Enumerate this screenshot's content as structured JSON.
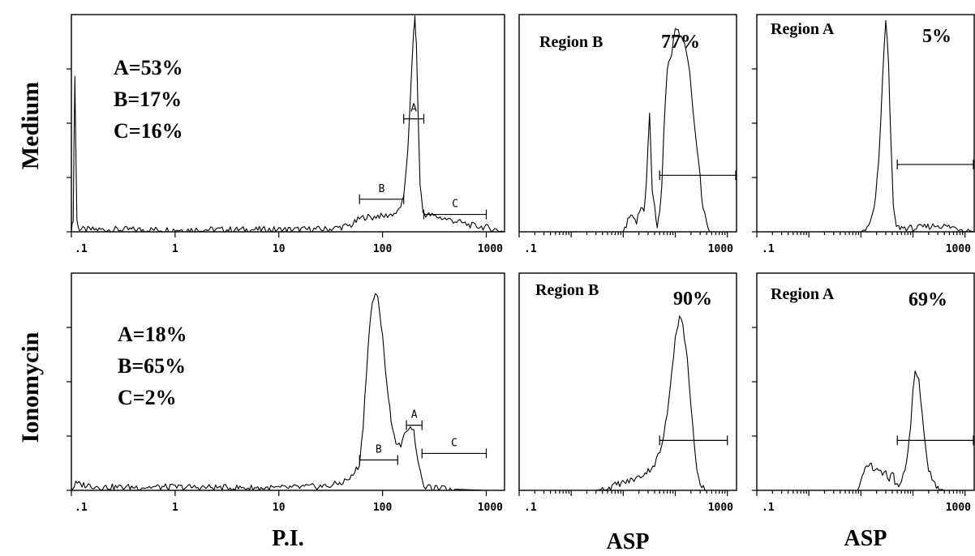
{
  "chart_data": [
    {
      "id": "medium-pi",
      "type": "area",
      "row_label": "Medium",
      "xlabel": "",
      "x_scale": "log",
      "xlim": [
        0.1,
        1500
      ],
      "x_tick_labels": [
        ".1",
        "1",
        "10",
        "100",
        "1000"
      ],
      "stats": [
        "A=53%",
        "B=17%",
        "C=16%"
      ],
      "gates": [
        {
          "label": "A",
          "from": 160,
          "to": 250,
          "level": 0.52
        },
        {
          "label": "B",
          "from": 60,
          "to": 160,
          "level": 0.15
        },
        {
          "label": "C",
          "from": 250,
          "to": 1000,
          "level": 0.08
        }
      ],
      "series": [
        {
          "x": [
            0.1,
            0.104,
            0.108,
            0.113,
            0.12,
            0.2,
            1,
            10,
            30,
            50,
            60,
            70,
            80,
            90,
            100,
            120,
            140,
            160,
            175,
            190,
            200,
            205,
            212,
            220,
            230,
            245,
            260,
            300,
            400,
            500,
            700,
            1000,
            1500
          ],
          "y": [
            0.0,
            0.06,
            0.72,
            0.05,
            0.01,
            0.01,
            0.01,
            0.01,
            0.012,
            0.03,
            0.06,
            0.07,
            0.065,
            0.075,
            0.07,
            0.08,
            0.09,
            0.15,
            0.38,
            0.72,
            0.93,
            0.98,
            0.86,
            0.55,
            0.22,
            0.09,
            0.08,
            0.075,
            0.06,
            0.05,
            0.03,
            0.02,
            0.0
          ]
        }
      ]
    },
    {
      "id": "medium-asp-b",
      "type": "area",
      "row_label": "Medium",
      "x_scale": "log",
      "xlim": [
        0.1,
        1500
      ],
      "x_tick_labels": [
        ".1",
        "1000"
      ],
      "region": {
        "name": "Region B",
        "percent": "77%"
      },
      "gates": [
        {
          "from": 50,
          "to": 1500,
          "level": 0.26
        }
      ],
      "series": [
        {
          "x": [
            0.1,
            10,
            14,
            18,
            22,
            25,
            28,
            32,
            36,
            40,
            45,
            50,
            55,
            60,
            70,
            85,
            100,
            130,
            160,
            190,
            220,
            260,
            300,
            340,
            400,
            460,
            520,
            600,
            700,
            1000
          ],
          "y": [
            0.0,
            0.0,
            0.08,
            0.05,
            0.12,
            0.08,
            0.25,
            0.55,
            0.18,
            0.12,
            0.02,
            0.1,
            0.2,
            0.45,
            0.75,
            0.82,
            0.95,
            0.89,
            0.85,
            0.72,
            0.55,
            0.38,
            0.25,
            0.1,
            0.05,
            0.0,
            0.0,
            0.0,
            0.0,
            0.0
          ]
        }
      ]
    },
    {
      "id": "medium-asp-a",
      "type": "area",
      "row_label": "Medium",
      "x_scale": "log",
      "xlim": [
        0.1,
        1500
      ],
      "x_tick_labels": [
        ".1",
        "1000"
      ],
      "region": {
        "name": "Region A",
        "percent": "5%"
      },
      "gates": [
        {
          "from": 50,
          "to": 1500,
          "level": 0.31
        }
      ],
      "series": [
        {
          "x": [
            0.1,
            10,
            14,
            18,
            22,
            26,
            30,
            34,
            38,
            42,
            46,
            50,
            60,
            100,
            300,
            600,
            1000,
            1500
          ],
          "y": [
            0.0,
            0.0,
            0.02,
            0.1,
            0.32,
            0.7,
            0.98,
            0.78,
            0.38,
            0.12,
            0.04,
            0.02,
            0.02,
            0.015,
            0.03,
            0.02,
            0.01,
            0.0
          ]
        }
      ]
    },
    {
      "id": "ionomycin-pi",
      "type": "area",
      "row_label": "Ionomycin",
      "xlabel": "P.I.",
      "x_scale": "log",
      "xlim": [
        0.1,
        1500
      ],
      "x_tick_labels": [
        ".1",
        "1",
        "10",
        "100",
        "1000"
      ],
      "stats": [
        "A=18%",
        "B=65%",
        "C=2%"
      ],
      "gates": [
        {
          "label": "A",
          "from": 170,
          "to": 240,
          "level": 0.3
        },
        {
          "label": "B",
          "from": 60,
          "to": 140,
          "level": 0.14
        },
        {
          "label": "C",
          "from": 240,
          "to": 1000,
          "level": 0.17
        }
      ],
      "series": [
        {
          "x": [
            0.1,
            0.11,
            0.2,
            1,
            10,
            30,
            40,
            50,
            60,
            65,
            70,
            75,
            80,
            85,
            90,
            100,
            110,
            125,
            140,
            155,
            170,
            185,
            200,
            220,
            240,
            260,
            300,
            500,
            1000,
            1500
          ],
          "y": [
            0.0,
            0.03,
            0.015,
            0.015,
            0.01,
            0.02,
            0.035,
            0.06,
            0.12,
            0.3,
            0.55,
            0.75,
            0.87,
            0.9,
            0.88,
            0.72,
            0.48,
            0.28,
            0.2,
            0.22,
            0.28,
            0.3,
            0.27,
            0.14,
            0.04,
            0.015,
            0.01,
            0.005,
            0.0,
            0.0
          ]
        }
      ]
    },
    {
      "id": "ionomycin-asp-b",
      "type": "area",
      "row_label": "Ionomycin",
      "xlabel": "ASP",
      "x_scale": "log",
      "xlim": [
        0.1,
        1500
      ],
      "x_tick_labels": [
        ".1",
        "1000"
      ],
      "region": {
        "name": "Region B",
        "percent": "90%"
      },
      "gates": [
        {
          "from": 50,
          "to": 1000,
          "level": 0.23
        }
      ],
      "series": [
        {
          "x": [
            0.1,
            3,
            5,
            8,
            12,
            20,
            30,
            40,
            55,
            70,
            85,
            100,
            120,
            140,
            170,
            200,
            230,
            260,
            300,
            400,
            1000
          ],
          "y": [
            0.0,
            0.0,
            0.01,
            0.03,
            0.04,
            0.06,
            0.09,
            0.12,
            0.2,
            0.35,
            0.55,
            0.7,
            0.8,
            0.76,
            0.6,
            0.4,
            0.22,
            0.08,
            0.02,
            0.0,
            0.0
          ]
        }
      ]
    },
    {
      "id": "ionomycin-asp-a",
      "type": "area",
      "row_label": "Ionomycin",
      "xlabel": "ASP",
      "x_scale": "log",
      "xlim": [
        0.1,
        1500
      ],
      "x_tick_labels": [
        ".1",
        "1000"
      ],
      "region": {
        "name": "Region A",
        "percent": "69%"
      },
      "gates": [
        {
          "from": 50,
          "to": 1500,
          "level": 0.23
        }
      ],
      "series": [
        {
          "x": [
            0.1,
            8,
            10,
            12,
            15,
            18,
            22,
            26,
            30,
            35,
            40,
            45,
            50,
            60,
            70,
            80,
            90,
            100,
            110,
            130,
            150,
            170,
            200,
            250,
            300,
            400,
            500,
            700,
            1000
          ],
          "y": [
            0.0,
            0.0,
            0.04,
            0.09,
            0.12,
            0.1,
            0.1,
            0.06,
            0.08,
            0.05,
            0.09,
            0.04,
            0.02,
            0.04,
            0.1,
            0.18,
            0.3,
            0.45,
            0.55,
            0.5,
            0.36,
            0.22,
            0.1,
            0.04,
            0.01,
            0.0,
            0.0,
            0.0,
            0.0
          ]
        }
      ]
    }
  ]
}
